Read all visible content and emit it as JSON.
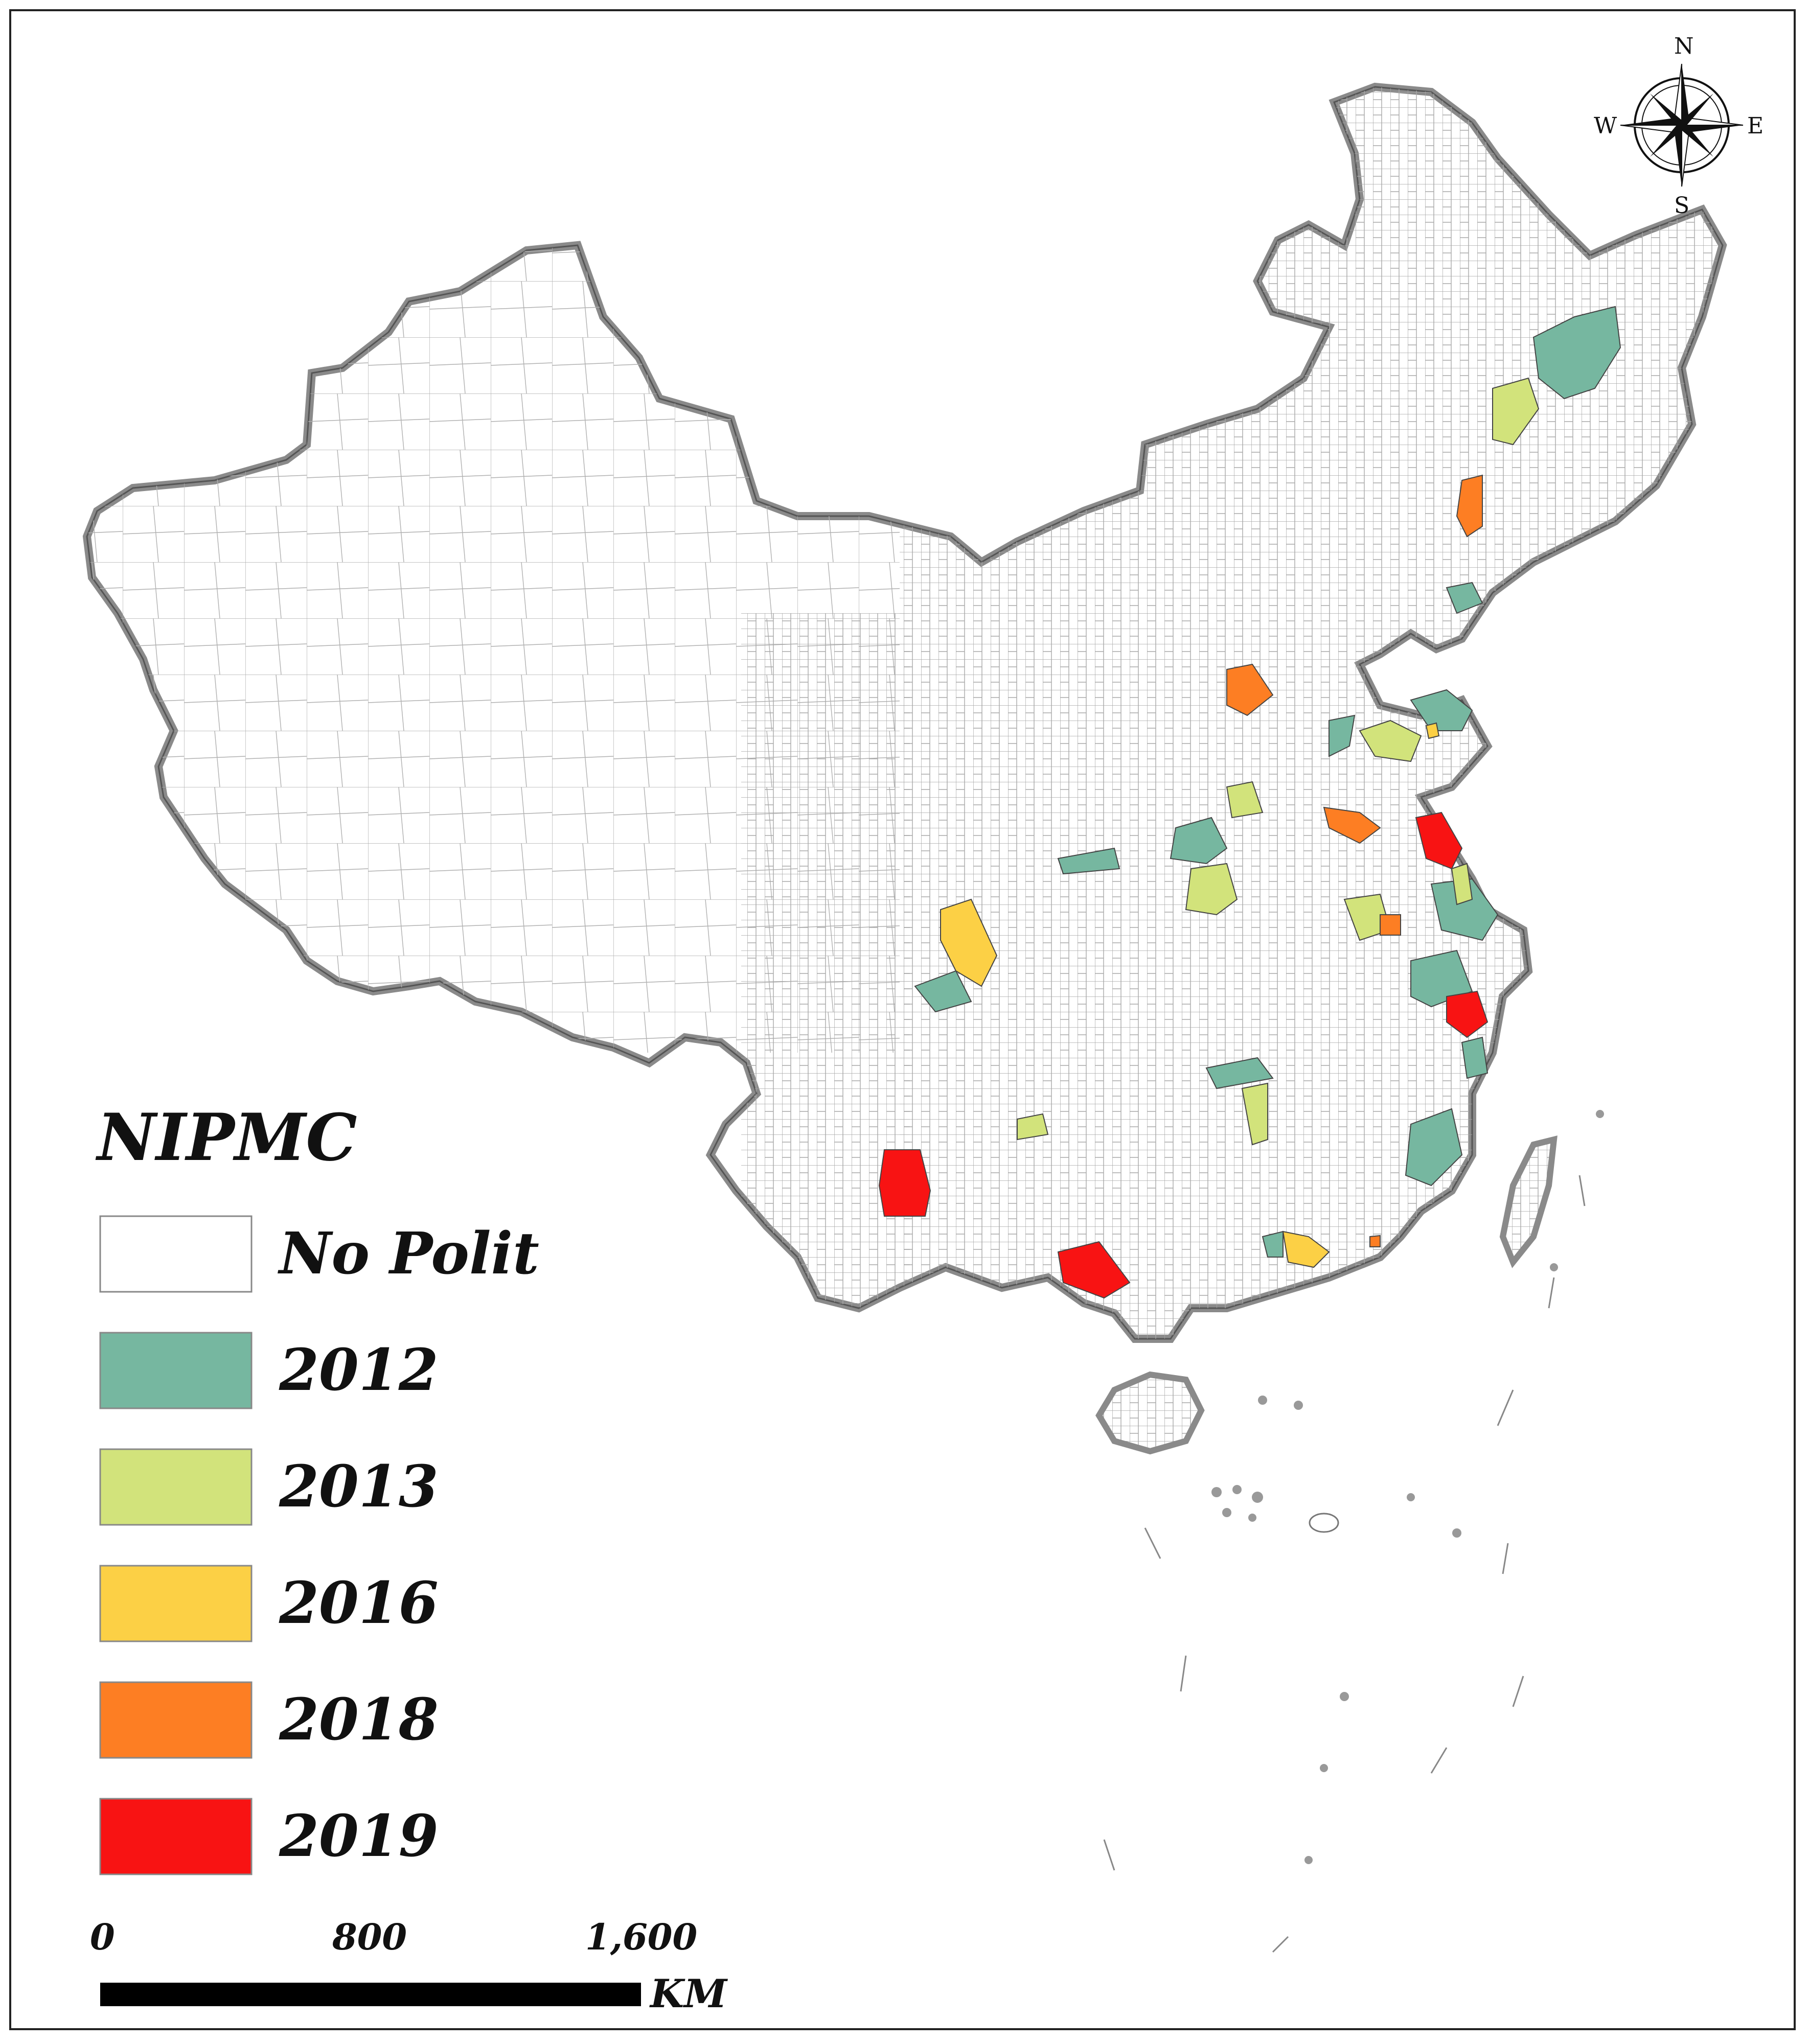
{
  "legend": {
    "title": "NIPMC",
    "items": [
      {
        "label": "No Polit",
        "color": "#ffffff"
      },
      {
        "label": "2012",
        "color": "#76b7a0"
      },
      {
        "label": "2013",
        "color": "#d2e37b"
      },
      {
        "label": "2016",
        "color": "#fcd045"
      },
      {
        "label": "2018",
        "color": "#fd7e23"
      },
      {
        "label": "2019",
        "color": "#f81313"
      }
    ]
  },
  "scale_bar": {
    "ticks": [
      "0",
      "800",
      "1,600"
    ],
    "unit": "KM"
  },
  "north_arrow": {
    "n": "N",
    "s": "S",
    "e": "E",
    "w": "W"
  },
  "colors": {
    "border": "#8a8a8a",
    "inner_lines": "#9a9a9a"
  }
}
